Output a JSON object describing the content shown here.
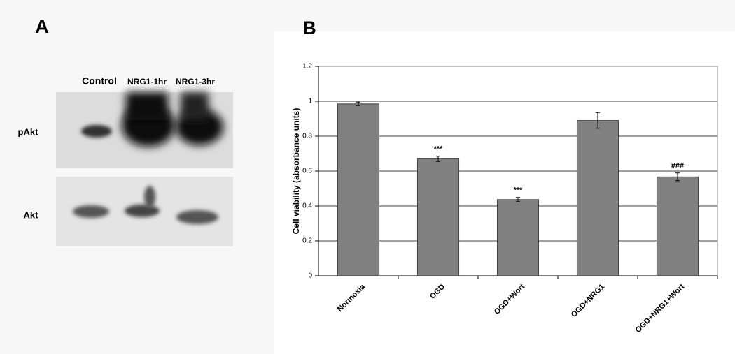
{
  "panel_a": {
    "label": "A",
    "lanes": [
      "Control",
      "NRG1-1hr",
      "NRG1-3hr"
    ],
    "rows": [
      "pAkt",
      "Akt"
    ]
  },
  "panel_b": {
    "label": "B"
  },
  "chart_data": {
    "type": "bar",
    "y_label": "Cell viability (absorbance units)",
    "categories": [
      "Normoxia",
      "OGD",
      "OGD+Wort",
      "OGD+NRG1",
      "OGD+NRG1+Wort"
    ],
    "values": [
      0.985,
      0.67,
      0.437,
      0.89,
      0.567
    ],
    "errors": [
      0.01,
      0.015,
      0.012,
      0.045,
      0.022
    ],
    "color": "#808080",
    "ylim": [
      0,
      1.2
    ],
    "yticks": [
      0,
      0.2,
      0.4,
      0.6,
      0.8,
      1,
      1.2
    ],
    "grid": true,
    "annotations": [
      {
        "text": "***",
        "x": "OGD"
      },
      {
        "text": "***",
        "x": "OGD+Wort"
      },
      {
        "text": "###",
        "x": "OGD+NRG1+Wort"
      }
    ]
  }
}
